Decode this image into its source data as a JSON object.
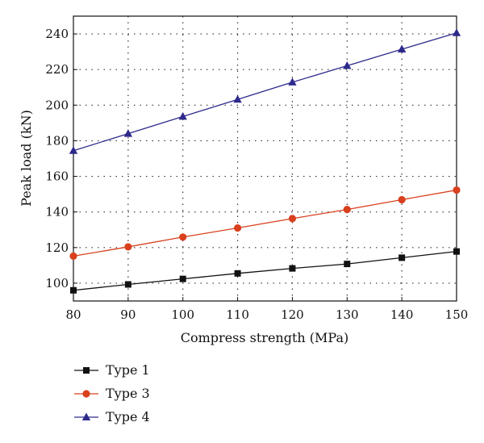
{
  "chart_data": {
    "type": "line",
    "title": "",
    "xlabel": "Compress strength (MPa)",
    "ylabel": "Peak load (kN)",
    "x": [
      80,
      90,
      100,
      110,
      120,
      130,
      140,
      150
    ],
    "xlim": [
      80,
      150
    ],
    "ylim": [
      90,
      250
    ],
    "xticks": [
      "80",
      "90",
      "100",
      "110",
      "120",
      "130",
      "140",
      "150"
    ],
    "yticks": [
      "100",
      "120",
      "140",
      "160",
      "180",
      "200",
      "220",
      "240"
    ],
    "grid": true,
    "grid_style": "dotted",
    "legend_position": "below",
    "series": [
      {
        "name": "Type 1",
        "color": "#111111",
        "marker": "square",
        "values": [
          96.0,
          99.3,
          102.4,
          105.5,
          108.3,
          110.8,
          114.3,
          117.8
        ]
      },
      {
        "name": "Type 3",
        "color": "#d9401e",
        "marker": "circle",
        "values": [
          115.2,
          120.4,
          125.9,
          131.0,
          136.3,
          141.4,
          146.9,
          152.3
        ]
      },
      {
        "name": "Type 4",
        "color": "#2e2a8c",
        "marker": "triangle",
        "values": [
          174.4,
          184.0,
          193.6,
          203.2,
          212.9,
          222.1,
          231.4,
          240.6
        ]
      }
    ]
  }
}
